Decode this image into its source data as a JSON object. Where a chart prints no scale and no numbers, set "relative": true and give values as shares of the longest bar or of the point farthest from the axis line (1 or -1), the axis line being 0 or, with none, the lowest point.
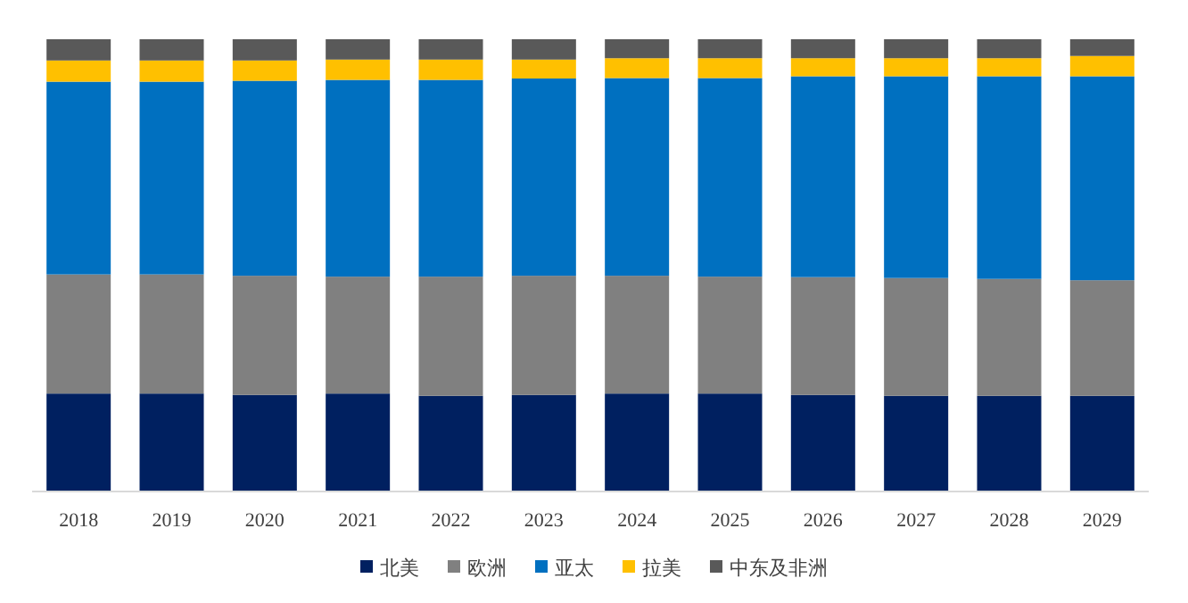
{
  "chart_data": {
    "type": "bar",
    "stacked": true,
    "relative": true,
    "legend": "bottom",
    "categories": [
      "2018",
      "2019",
      "2020",
      "2021",
      "2022",
      "2023",
      "2024",
      "2025",
      "2026",
      "2027",
      "2028",
      "2029"
    ],
    "series": [
      {
        "name": "北美",
        "color": "#002060",
        "values": [
          0.215,
          0.215,
          0.212,
          0.215,
          0.21,
          0.212,
          0.215,
          0.215,
          0.212,
          0.21,
          0.21,
          0.21
        ]
      },
      {
        "name": "欧洲",
        "color": "#808080",
        "values": [
          0.264,
          0.264,
          0.264,
          0.259,
          0.264,
          0.264,
          0.261,
          0.259,
          0.261,
          0.261,
          0.259,
          0.256
        ]
      },
      {
        "name": "亚太",
        "color": "#0070c0",
        "values": [
          0.427,
          0.427,
          0.432,
          0.436,
          0.436,
          0.437,
          0.438,
          0.44,
          0.445,
          0.447,
          0.449,
          0.452
        ]
      },
      {
        "name": "拉美",
        "color": "#ffc000",
        "values": [
          0.047,
          0.047,
          0.045,
          0.045,
          0.045,
          0.042,
          0.044,
          0.044,
          0.04,
          0.04,
          0.04,
          0.045
        ]
      },
      {
        "name": "中东及非洲",
        "color": "#595959",
        "values": [
          0.047,
          0.047,
          0.047,
          0.045,
          0.045,
          0.045,
          0.042,
          0.042,
          0.042,
          0.042,
          0.042,
          0.037
        ]
      }
    ]
  }
}
